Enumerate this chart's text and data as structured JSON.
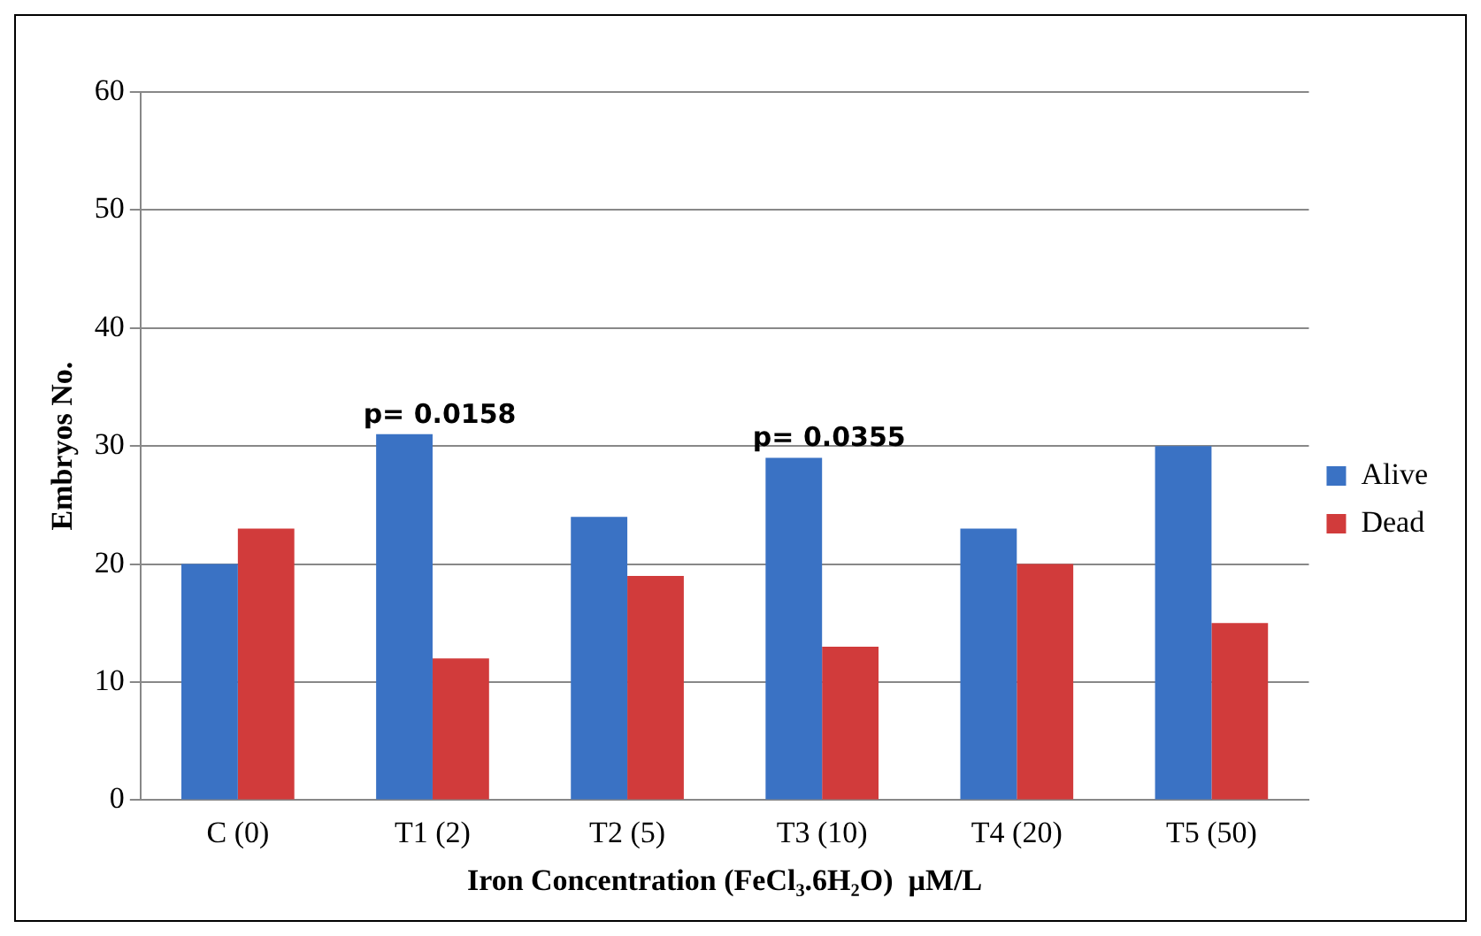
{
  "chart_data": {
    "type": "bar",
    "xlabel": "Iron Concentration (FeCl₃.6H₂O)  µM/L",
    "ylabel": "Embryos No.",
    "categories": [
      "C (0)",
      "T1 (2)",
      "T2 (5)",
      "T3 (10)",
      "T4 (20)",
      "T5 (50)"
    ],
    "series": [
      {
        "name": "Alive",
        "color": "#3a72c4",
        "values": [
          20,
          31,
          24,
          29,
          23,
          30
        ]
      },
      {
        "name": "Dead",
        "color": "#d13b3b",
        "values": [
          23,
          12,
          19,
          13,
          20,
          15
        ]
      }
    ],
    "ylim": [
      0,
      60
    ],
    "yticks": [
      0,
      10,
      20,
      30,
      40,
      50,
      60
    ],
    "grid": "y",
    "legend": "right",
    "annotations": [
      {
        "text": "p= 0.0158",
        "x": "T1 (2)",
        "y": 31
      },
      {
        "text": "p= 0.0355",
        "x": "T3 (10)",
        "y": 29
      }
    ]
  }
}
